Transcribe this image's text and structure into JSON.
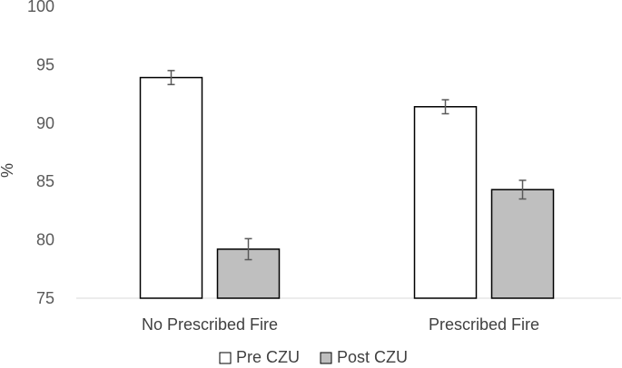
{
  "chart_data": {
    "type": "bar",
    "title": "",
    "xlabel": "",
    "ylabel": "%",
    "ylim": [
      75,
      100
    ],
    "yticks": [
      75,
      80,
      85,
      90,
      95,
      100
    ],
    "categories": [
      "No Prescribed Fire",
      "Prescribed Fire"
    ],
    "series": [
      {
        "name": "Pre CZU",
        "values": [
          93.9,
          91.4
        ],
        "error": [
          0.6,
          0.6
        ],
        "color": "#ffffff"
      },
      {
        "name": "Post CZU",
        "values": [
          79.2,
          84.3
        ],
        "error": [
          0.9,
          0.8
        ],
        "color": "#bfbfbf"
      }
    ],
    "grid": false,
    "legend": "bottom",
    "colors": {
      "axis": "#d9d9d9",
      "bar_outline": "#000000",
      "error_bar": "#595959"
    }
  }
}
